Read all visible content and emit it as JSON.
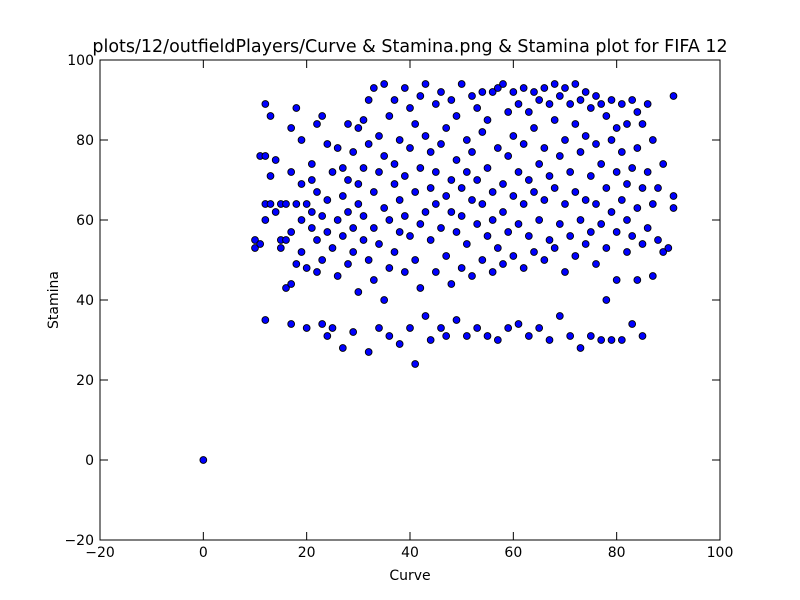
{
  "chart_data": {
    "type": "scatter",
    "title": "plots/12/outfieldPlayers/Curve & Stamina.png & Stamina plot for FIFA 12",
    "xlabel": "Curve",
    "ylabel": "Stamina",
    "xlim": [
      -20,
      100
    ],
    "ylim": [
      -20,
      100
    ],
    "xticks": [
      "−20",
      "0",
      "20",
      "40",
      "60",
      "80",
      "100"
    ],
    "yticks": [
      "−20",
      "0",
      "20",
      "40",
      "60",
      "80",
      "100"
    ],
    "grid": false,
    "legend": "none",
    "point_color": "#0000ff",
    "point_edge_color": "#000000",
    "points": [
      [
        0,
        0
      ],
      [
        10,
        53
      ],
      [
        10,
        55
      ],
      [
        11,
        54
      ],
      [
        11,
        76
      ],
      [
        12,
        76
      ],
      [
        12,
        89
      ],
      [
        12,
        35
      ],
      [
        12,
        60
      ],
      [
        12,
        64
      ],
      [
        13,
        86
      ],
      [
        13,
        71
      ],
      [
        13,
        64
      ],
      [
        14,
        62
      ],
      [
        14,
        75
      ],
      [
        15,
        55
      ],
      [
        15,
        64
      ],
      [
        15,
        53
      ],
      [
        16,
        43
      ],
      [
        16,
        55
      ],
      [
        16,
        64
      ],
      [
        17,
        34
      ],
      [
        17,
        44
      ],
      [
        17,
        57
      ],
      [
        17,
        72
      ],
      [
        17,
        83
      ],
      [
        18,
        88
      ],
      [
        18,
        49
      ],
      [
        18,
        64
      ],
      [
        19,
        80
      ],
      [
        19,
        52
      ],
      [
        19,
        69
      ],
      [
        19,
        60
      ],
      [
        20,
        33
      ],
      [
        20,
        48
      ],
      [
        20,
        64
      ],
      [
        21,
        74
      ],
      [
        21,
        58
      ],
      [
        21,
        62
      ],
      [
        21,
        70
      ],
      [
        22,
        84
      ],
      [
        22,
        47
      ],
      [
        22,
        67
      ],
      [
        22,
        55
      ],
      [
        23,
        34
      ],
      [
        23,
        86
      ],
      [
        23,
        61
      ],
      [
        23,
        50
      ],
      [
        24,
        31
      ],
      [
        24,
        79
      ],
      [
        24,
        65
      ],
      [
        24,
        57
      ],
      [
        25,
        72
      ],
      [
        25,
        53
      ],
      [
        25,
        33
      ],
      [
        26,
        78
      ],
      [
        26,
        46
      ],
      [
        26,
        60
      ],
      [
        27,
        28
      ],
      [
        27,
        73
      ],
      [
        27,
        66
      ],
      [
        27,
        56
      ],
      [
        28,
        84
      ],
      [
        28,
        49
      ],
      [
        28,
        62
      ],
      [
        28,
        70
      ],
      [
        29,
        32
      ],
      [
        29,
        77
      ],
      [
        29,
        58
      ],
      [
        29,
        52
      ],
      [
        30,
        42
      ],
      [
        30,
        83
      ],
      [
        30,
        64
      ],
      [
        30,
        69
      ],
      [
        31,
        85
      ],
      [
        31,
        55
      ],
      [
        31,
        73
      ],
      [
        31,
        61
      ],
      [
        32,
        27
      ],
      [
        32,
        90
      ],
      [
        32,
        79
      ],
      [
        32,
        50
      ],
      [
        33,
        93
      ],
      [
        33,
        45
      ],
      [
        33,
        67
      ],
      [
        33,
        58
      ],
      [
        34,
        33
      ],
      [
        34,
        81
      ],
      [
        34,
        72
      ],
      [
        34,
        54
      ],
      [
        35,
        94
      ],
      [
        35,
        40
      ],
      [
        35,
        63
      ],
      [
        35,
        76
      ],
      [
        36,
        31
      ],
      [
        36,
        86
      ],
      [
        36,
        60
      ],
      [
        36,
        48
      ],
      [
        37,
        90
      ],
      [
        37,
        69
      ],
      [
        37,
        74
      ],
      [
        37,
        52
      ],
      [
        38,
        29
      ],
      [
        38,
        80
      ],
      [
        38,
        57
      ],
      [
        38,
        65
      ],
      [
        39,
        93
      ],
      [
        39,
        47
      ],
      [
        39,
        71
      ],
      [
        39,
        61
      ],
      [
        40,
        33
      ],
      [
        40,
        88
      ],
      [
        40,
        56
      ],
      [
        40,
        78
      ],
      [
        41,
        24
      ],
      [
        41,
        84
      ],
      [
        41,
        67
      ],
      [
        41,
        50
      ],
      [
        42,
        91
      ],
      [
        42,
        43
      ],
      [
        42,
        73
      ],
      [
        42,
        59
      ],
      [
        43,
        36
      ],
      [
        43,
        94
      ],
      [
        43,
        62
      ],
      [
        43,
        81
      ],
      [
        44,
        30
      ],
      [
        44,
        77
      ],
      [
        44,
        55
      ],
      [
        44,
        68
      ],
      [
        45,
        89
      ],
      [
        45,
        47
      ],
      [
        45,
        64
      ],
      [
        45,
        72
      ],
      [
        46,
        33
      ],
      [
        46,
        92
      ],
      [
        46,
        58
      ],
      [
        46,
        79
      ],
      [
        47,
        31
      ],
      [
        47,
        83
      ],
      [
        47,
        51
      ],
      [
        47,
        66
      ],
      [
        48,
        90
      ],
      [
        48,
        44
      ],
      [
        48,
        70
      ],
      [
        48,
        62
      ],
      [
        49,
        35
      ],
      [
        49,
        86
      ],
      [
        49,
        57
      ],
      [
        49,
        75
      ],
      [
        50,
        94
      ],
      [
        50,
        48
      ],
      [
        50,
        68
      ],
      [
        50,
        61
      ],
      [
        51,
        31
      ],
      [
        51,
        80
      ],
      [
        51,
        54
      ],
      [
        51,
        72
      ],
      [
        52,
        91
      ],
      [
        52,
        46
      ],
      [
        52,
        65
      ],
      [
        52,
        77
      ],
      [
        53,
        33
      ],
      [
        53,
        88
      ],
      [
        53,
        59
      ],
      [
        53,
        70
      ],
      [
        54,
        92
      ],
      [
        54,
        50
      ],
      [
        54,
        64
      ],
      [
        54,
        82
      ],
      [
        55,
        31
      ],
      [
        55,
        85
      ],
      [
        55,
        56
      ],
      [
        55,
        73
      ],
      [
        56,
        92
      ],
      [
        56,
        47
      ],
      [
        56,
        67
      ],
      [
        56,
        60
      ],
      [
        57,
        30
      ],
      [
        57,
        93
      ],
      [
        57,
        53
      ],
      [
        57,
        78
      ],
      [
        58,
        94
      ],
      [
        58,
        49
      ],
      [
        58,
        69
      ],
      [
        58,
        62
      ],
      [
        59,
        33
      ],
      [
        59,
        87
      ],
      [
        59,
        57
      ],
      [
        59,
        76
      ],
      [
        60,
        92
      ],
      [
        60,
        51
      ],
      [
        60,
        66
      ],
      [
        60,
        81
      ],
      [
        61,
        34
      ],
      [
        61,
        89
      ],
      [
        61,
        59
      ],
      [
        61,
        72
      ],
      [
        62,
        93
      ],
      [
        62,
        48
      ],
      [
        62,
        64
      ],
      [
        62,
        79
      ],
      [
        63,
        31
      ],
      [
        63,
        87
      ],
      [
        63,
        56
      ],
      [
        63,
        70
      ],
      [
        64,
        92
      ],
      [
        64,
        52
      ],
      [
        64,
        67
      ],
      [
        64,
        83
      ],
      [
        65,
        33
      ],
      [
        65,
        90
      ],
      [
        65,
        60
      ],
      [
        65,
        74
      ],
      [
        66,
        93
      ],
      [
        66,
        50
      ],
      [
        66,
        65
      ],
      [
        66,
        78
      ],
      [
        67,
        30
      ],
      [
        67,
        89
      ],
      [
        67,
        55
      ],
      [
        67,
        71
      ],
      [
        68,
        94
      ],
      [
        68,
        53
      ],
      [
        68,
        68
      ],
      [
        68,
        85
      ],
      [
        69,
        36
      ],
      [
        69,
        91
      ],
      [
        69,
        59
      ],
      [
        69,
        76
      ],
      [
        70,
        93
      ],
      [
        70,
        47
      ],
      [
        70,
        64
      ],
      [
        70,
        80
      ],
      [
        71,
        31
      ],
      [
        71,
        89
      ],
      [
        71,
        56
      ],
      [
        71,
        72
      ],
      [
        72,
        94
      ],
      [
        72,
        51
      ],
      [
        72,
        67
      ],
      [
        72,
        84
      ],
      [
        73,
        28
      ],
      [
        73,
        90
      ],
      [
        73,
        60
      ],
      [
        73,
        77
      ],
      [
        74,
        92
      ],
      [
        74,
        54
      ],
      [
        74,
        65
      ],
      [
        74,
        81
      ],
      [
        75,
        31
      ],
      [
        75,
        88
      ],
      [
        75,
        57
      ],
      [
        75,
        71
      ],
      [
        76,
        91
      ],
      [
        76,
        49
      ],
      [
        76,
        64
      ],
      [
        76,
        79
      ],
      [
        77,
        30
      ],
      [
        77,
        89
      ],
      [
        77,
        59
      ],
      [
        77,
        74
      ],
      [
        78,
        40
      ],
      [
        78,
        86
      ],
      [
        78,
        53
      ],
      [
        78,
        68
      ],
      [
        79,
        30
      ],
      [
        79,
        90
      ],
      [
        79,
        62
      ],
      [
        79,
        80
      ],
      [
        80,
        45
      ],
      [
        80,
        83
      ],
      [
        80,
        57
      ],
      [
        80,
        72
      ],
      [
        81,
        30
      ],
      [
        81,
        89
      ],
      [
        81,
        65
      ],
      [
        81,
        77
      ],
      [
        82,
        52
      ],
      [
        82,
        84
      ],
      [
        82,
        60
      ],
      [
        82,
        69
      ],
      [
        83,
        34
      ],
      [
        83,
        90
      ],
      [
        83,
        56
      ],
      [
        83,
        73
      ],
      [
        84,
        45
      ],
      [
        84,
        87
      ],
      [
        84,
        63
      ],
      [
        84,
        78
      ],
      [
        85,
        31
      ],
      [
        85,
        84
      ],
      [
        85,
        54
      ],
      [
        85,
        68
      ],
      [
        86,
        89
      ],
      [
        86,
        58
      ],
      [
        86,
        72
      ],
      [
        87,
        46
      ],
      [
        87,
        80
      ],
      [
        87,
        64
      ],
      [
        88,
        55
      ],
      [
        88,
        68
      ],
      [
        89,
        74
      ],
      [
        89,
        52
      ],
      [
        90,
        53
      ],
      [
        91,
        91
      ],
      [
        91,
        66
      ],
      [
        91,
        63
      ]
    ]
  }
}
